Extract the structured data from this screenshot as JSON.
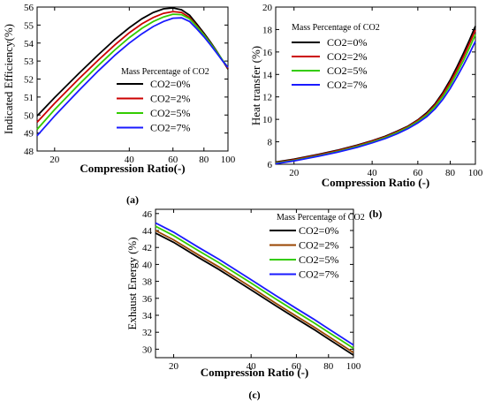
{
  "chart_data": [
    {
      "type": "line",
      "panel_label": "(a)",
      "xlabel": "Compression Ratio(-)",
      "ylabel": "Indicated Efficiency(%)",
      "xscale": "log",
      "xlim": [
        17,
        100
      ],
      "ylim": [
        48,
        56
      ],
      "xticks": [
        20,
        40,
        60,
        80,
        100
      ],
      "yticks": [
        48,
        49,
        50,
        51,
        52,
        53,
        54,
        55,
        56
      ],
      "legend_title": "Mass Percentage of CO2",
      "legend_position": "center-right",
      "x": [
        17,
        20,
        25,
        30,
        35,
        40,
        45,
        50,
        55,
        60,
        65,
        70,
        75,
        80,
        85,
        90,
        95,
        100
      ],
      "series": [
        {
          "name": "CO2=0%",
          "color": "#000000",
          "values": [
            49.95,
            50.97,
            52.3,
            53.35,
            54.2,
            54.85,
            55.35,
            55.7,
            55.9,
            55.95,
            55.85,
            55.55,
            55.05,
            54.55,
            54.05,
            53.55,
            53.05,
            52.55
          ]
        },
        {
          "name": "CO2=2%",
          "color": "#cc0000",
          "values": [
            49.6,
            50.65,
            52.0,
            53.05,
            53.9,
            54.57,
            55.07,
            55.42,
            55.65,
            55.75,
            55.7,
            55.42,
            54.95,
            54.48,
            54.0,
            53.52,
            53.04,
            52.6
          ]
        },
        {
          "name": "CO2=5%",
          "color": "#33cc00",
          "values": [
            49.2,
            50.3,
            51.68,
            52.75,
            53.62,
            54.3,
            54.82,
            55.2,
            55.45,
            55.6,
            55.58,
            55.35,
            54.9,
            54.45,
            53.98,
            53.51,
            53.06,
            52.65
          ]
        },
        {
          "name": "CO2=7%",
          "color": "#1a1aff",
          "values": [
            48.85,
            49.95,
            51.35,
            52.45,
            53.32,
            54.0,
            54.52,
            54.92,
            55.2,
            55.38,
            55.4,
            55.2,
            54.78,
            54.35,
            53.9,
            53.45,
            53.02,
            52.65
          ]
        }
      ]
    },
    {
      "type": "line",
      "panel_label": "(b)",
      "xlabel": "Compression Ratio (-)",
      "ylabel": "Heat transfer (%)",
      "xscale": "log",
      "xlim": [
        17,
        100
      ],
      "ylim": [
        6,
        20
      ],
      "xticks": [
        20,
        40,
        60,
        80,
        100
      ],
      "yticks": [
        6,
        8,
        10,
        12,
        14,
        16,
        18,
        20
      ],
      "legend_title": "Mass Percentage of CO2",
      "legend_position": "top-left",
      "x": [
        17,
        20,
        25,
        30,
        35,
        40,
        45,
        50,
        55,
        60,
        65,
        70,
        75,
        80,
        85,
        90,
        95,
        100
      ],
      "series": [
        {
          "name": "CO2=0%",
          "color": "#000000",
          "values": [
            6.2,
            6.45,
            6.9,
            7.3,
            7.7,
            8.1,
            8.5,
            8.95,
            9.4,
            9.95,
            10.6,
            11.4,
            12.4,
            13.5,
            14.7,
            15.9,
            17.1,
            18.3
          ]
        },
        {
          "name": "CO2=2%",
          "color": "#cc0000",
          "values": [
            6.15,
            6.4,
            6.85,
            7.25,
            7.65,
            8.05,
            8.45,
            8.9,
            9.35,
            9.9,
            10.5,
            11.3,
            12.25,
            13.3,
            14.45,
            15.6,
            16.8,
            17.95
          ]
        },
        {
          "name": "CO2=5%",
          "color": "#33cc00",
          "values": [
            6.1,
            6.35,
            6.78,
            7.18,
            7.58,
            7.98,
            8.38,
            8.82,
            9.28,
            9.8,
            10.4,
            11.15,
            12.05,
            13.05,
            14.15,
            15.25,
            16.4,
            17.55
          ]
        },
        {
          "name": "CO2=7%",
          "color": "#1a1aff",
          "values": [
            6.05,
            6.3,
            6.72,
            7.12,
            7.5,
            7.9,
            8.3,
            8.72,
            9.18,
            9.68,
            10.25,
            10.95,
            11.8,
            12.75,
            13.8,
            14.85,
            15.9,
            16.95
          ]
        }
      ]
    },
    {
      "type": "line",
      "panel_label": "(c)",
      "xlabel": "Compression Ratio (-)",
      "ylabel": "Exhaust Energy (%)",
      "xscale": "log",
      "xlim": [
        17,
        100
      ],
      "ylim": [
        29,
        46.5
      ],
      "xticks": [
        20,
        40,
        60,
        80,
        100
      ],
      "yticks": [
        30,
        32,
        34,
        36,
        38,
        40,
        42,
        44,
        46
      ],
      "legend_title": "Mass Percentage of CO2",
      "legend_position": "top-right",
      "x": [
        17,
        20,
        25,
        30,
        40,
        50,
        60,
        70,
        80,
        90,
        100
      ],
      "series": [
        {
          "name": "CO2=0%",
          "color": "#000000",
          "values": [
            43.7,
            42.6,
            40.8,
            39.4,
            37.0,
            35.1,
            33.6,
            32.35,
            31.2,
            30.2,
            29.3
          ]
        },
        {
          "name": "CO2=2%",
          "color": "#994400",
          "values": [
            44.0,
            42.9,
            41.1,
            39.7,
            37.3,
            35.4,
            33.9,
            32.65,
            31.5,
            30.5,
            29.6
          ]
        },
        {
          "name": "CO2=5%",
          "color": "#33cc00",
          "values": [
            44.5,
            43.4,
            41.6,
            40.2,
            37.8,
            35.9,
            34.4,
            33.15,
            32.0,
            31.0,
            30.1
          ]
        },
        {
          "name": "CO2=7%",
          "color": "#1a1aff",
          "values": [
            44.9,
            43.8,
            42.0,
            40.6,
            38.2,
            36.3,
            34.8,
            33.55,
            32.4,
            31.4,
            30.5
          ]
        }
      ]
    }
  ]
}
